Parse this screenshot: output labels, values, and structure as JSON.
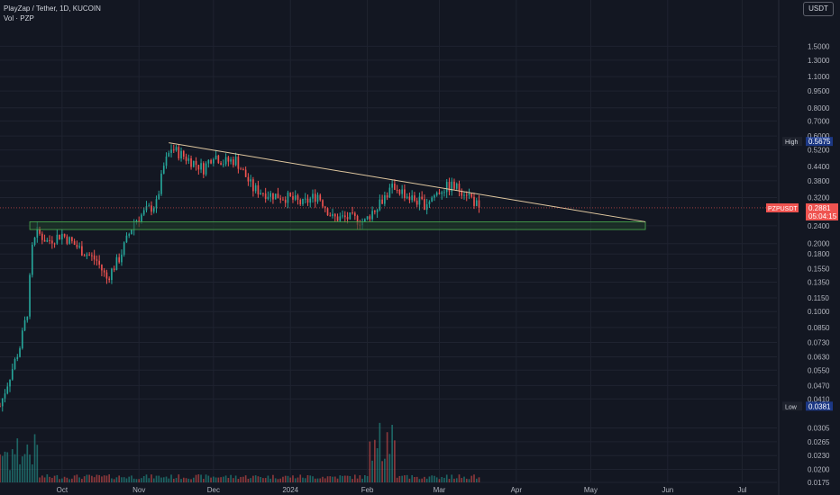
{
  "header": {
    "symbol_line": "PlayZap / Tether, 1D, KUCOIN",
    "volume_line": "Vol · PZP",
    "currency_button": "USDT"
  },
  "colors": {
    "background": "#131722",
    "up": "#26a69a",
    "down": "#ef5350",
    "grid": "#1f2330",
    "axis_text": "#b2b5be",
    "trendline": "#e0c8a0",
    "zone_fill": "#1f3a2a",
    "zone_border": "#4caf50",
    "high_label_bg": "#2962ff",
    "last_price_bg": "#ef5350"
  },
  "chart_data": {
    "type": "candlestick",
    "title": "PlayZap / Tether, 1D, KUCOIN",
    "y_scale": "log",
    "ylim": [
      0.0175,
      2.0
    ],
    "grid": true,
    "x_ticks": [
      "Oct",
      "Nov",
      "Dec",
      "2024",
      "Feb",
      "Mar",
      "Apr",
      "May",
      "Jun",
      "Jul"
    ],
    "y_ticks": [
      "1.5000",
      "1.3000",
      "1.1000",
      "0.9500",
      "0.8000",
      "0.7000",
      "0.6000",
      "0.5200",
      "0.4400",
      "0.3800",
      "0.3200",
      "0.2400",
      "0.2000",
      "0.1800",
      "0.1550",
      "0.1350",
      "0.1150",
      "0.1000",
      "0.0850",
      "0.0730",
      "0.0630",
      "0.0550",
      "0.0470",
      "0.0410",
      "0.0305",
      "0.0265",
      "0.0230",
      "0.0200",
      "0.0175"
    ],
    "x_start": "2023-09-06",
    "x_end": "2024-07-15",
    "series": [
      {
        "name": "PZPUSDT",
        "close_path": [
          [
            "2023-09-06",
            0.0381
          ],
          [
            "2023-09-10",
            0.052
          ],
          [
            "2023-09-14",
            0.07
          ],
          [
            "2023-09-17",
            0.1
          ],
          [
            "2023-09-19",
            0.19
          ],
          [
            "2023-09-21",
            0.225
          ],
          [
            "2023-09-25",
            0.205
          ],
          [
            "2023-10-01",
            0.22
          ],
          [
            "2023-10-08",
            0.19
          ],
          [
            "2023-10-15",
            0.168
          ],
          [
            "2023-10-19",
            0.14
          ],
          [
            "2023-10-24",
            0.172
          ],
          [
            "2023-10-30",
            0.25
          ],
          [
            "2023-11-04",
            0.28
          ],
          [
            "2023-11-08",
            0.3
          ],
          [
            "2023-11-11",
            0.44
          ],
          [
            "2023-11-14",
            0.53
          ],
          [
            "2023-11-20",
            0.48
          ],
          [
            "2023-11-27",
            0.43
          ],
          [
            "2023-12-01",
            0.5
          ],
          [
            "2023-12-05",
            0.46
          ],
          [
            "2023-12-10",
            0.47
          ],
          [
            "2023-12-17",
            0.35
          ],
          [
            "2023-12-24",
            0.33
          ],
          [
            "2023-12-31",
            0.32
          ],
          [
            "2024-01-06",
            0.3
          ],
          [
            "2024-01-12",
            0.33
          ],
          [
            "2024-01-18",
            0.26
          ],
          [
            "2024-01-25",
            0.26
          ],
          [
            "2024-01-31",
            0.25
          ],
          [
            "2024-02-05",
            0.3
          ],
          [
            "2024-02-12",
            0.36
          ],
          [
            "2024-02-18",
            0.32
          ],
          [
            "2024-02-24",
            0.3
          ],
          [
            "2024-03-02",
            0.35
          ],
          [
            "2024-03-06",
            0.36
          ],
          [
            "2024-03-12",
            0.34
          ],
          [
            "2024-03-17",
            0.2881
          ]
        ]
      }
    ],
    "trendline": {
      "from": [
        "2023-11-13",
        0.56
      ],
      "to": [
        "2024-05-23",
        0.25
      ]
    },
    "support_zone": {
      "from": "2023-09-18",
      "to": "2024-05-23",
      "low": 0.231,
      "high": 0.25
    },
    "high": {
      "label": "High",
      "value": "0.5675"
    },
    "low": {
      "label": "Low",
      "value": "0.0381"
    },
    "last_price": {
      "symbol": "PZPUSDT",
      "value": "0.2881",
      "countdown": "05:04:15"
    },
    "volume_range": [
      0,
      1
    ]
  }
}
